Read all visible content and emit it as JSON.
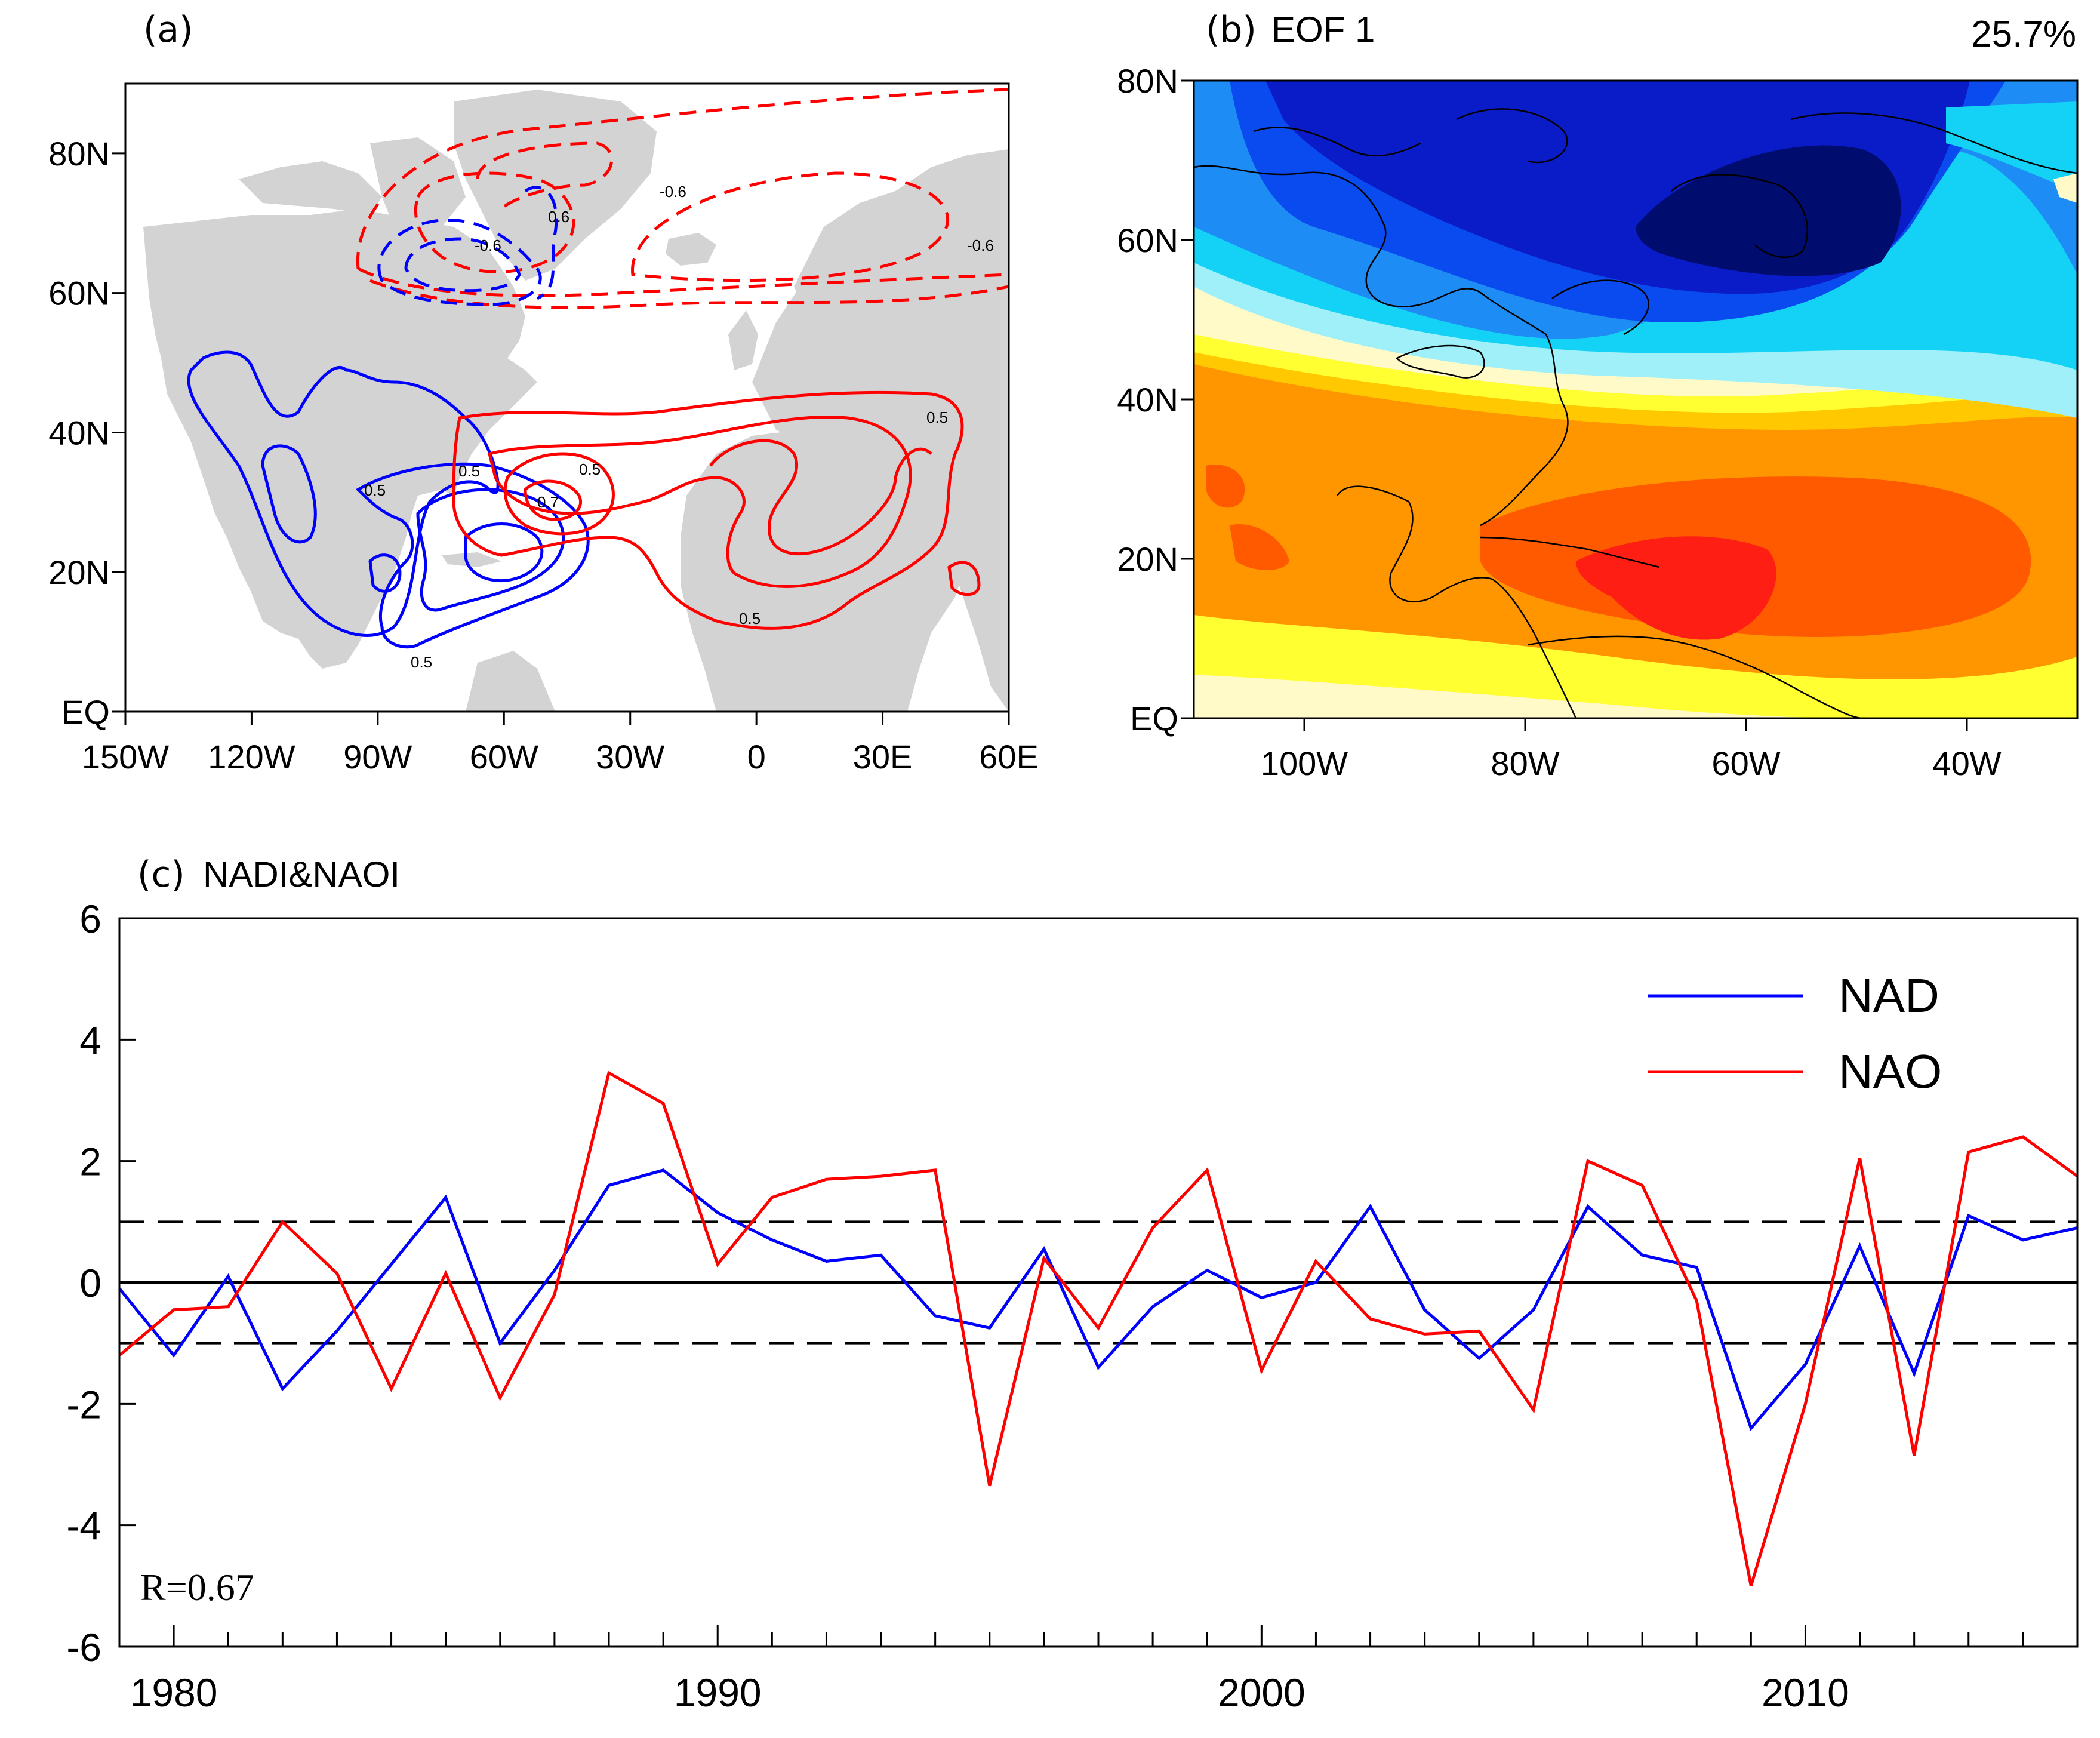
{
  "chart_data": [
    {
      "panel": "a",
      "type": "contour-map",
      "tag": "(a)",
      "x_ticks": [
        "150W",
        "120W",
        "90W",
        "60W",
        "30W",
        "0",
        "30E",
        "60E"
      ],
      "y_ticks": [
        "EQ",
        "20N",
        "40N",
        "60N",
        "80N"
      ],
      "xlim": [
        -150,
        60
      ],
      "ylim": [
        0,
        90
      ],
      "land_color": "#d3d3d3",
      "contour_labels": [
        {
          "text": "-0.6",
          "color": "#0000ff",
          "lon": -67,
          "lat": 67
        },
        {
          "text": "0.6",
          "color": "#ff0000",
          "lon": -53,
          "lat": 70
        },
        {
          "text": "-0.6",
          "color": "#ff0000",
          "lon": -20,
          "lat": 74
        },
        {
          "text": "-0.6",
          "color": "#ff0000",
          "lon": 50,
          "lat": 67
        },
        {
          "text": "0.5",
          "color": "#0000ff",
          "lon": -86,
          "lat": 32
        },
        {
          "text": "0.5",
          "color": "#ff0000",
          "lon": -74,
          "lat": 35
        },
        {
          "text": "0.5",
          "color": "#0000ff",
          "lon": -42,
          "lat": 35
        },
        {
          "text": "0.7",
          "color": "#0000ff",
          "lon": -52,
          "lat": 29
        },
        {
          "text": "0.5",
          "color": "#ff0000",
          "lon": 40,
          "lat": 42
        },
        {
          "text": "0.5",
          "color": "#ff0000",
          "lon": -4,
          "lat": 13
        },
        {
          "text": "0.5",
          "color": "#0000ff",
          "lon": -78,
          "lat": 7
        }
      ]
    },
    {
      "panel": "b",
      "type": "heatmap",
      "tag": "(b)",
      "title": "EOF 1",
      "variance": "25.7%",
      "x_ticks": [
        "100W",
        "80W",
        "60W",
        "40W"
      ],
      "x_tick_lons": [
        -100,
        -80,
        -60,
        -40
      ],
      "y_ticks": [
        "EQ",
        "20N",
        "40N",
        "60N",
        "80N"
      ],
      "xlim": [
        -110,
        -30
      ],
      "ylim": [
        0,
        80
      ],
      "colors": [
        "#000c6e",
        "#0a1cc8",
        "#0a4bf0",
        "#1e8cf5",
        "#14d2f5",
        "#a0f0fa",
        "#fffac8",
        "#ffff32",
        "#ffc800",
        "#ff9600",
        "#ff5a00",
        "#ff1e14"
      ]
    },
    {
      "panel": "c",
      "type": "line",
      "tag": "(c)",
      "title": "NADI&NAOI",
      "x": [
        1979,
        1980,
        1981,
        1982,
        1983,
        1984,
        1985,
        1986,
        1987,
        1988,
        1989,
        1990,
        1991,
        1992,
        1993,
        1994,
        1995,
        1996,
        1997,
        1998,
        1999,
        2000,
        2001,
        2002,
        2003,
        2004,
        2005,
        2006,
        2007,
        2008,
        2009,
        2010,
        2011,
        2012,
        2013,
        2014,
        2015
      ],
      "xlim": [
        1979,
        2015
      ],
      "ylim": [
        -6,
        6
      ],
      "x_ticks": [
        1980,
        1990,
        2000,
        2010
      ],
      "y_ticks": [
        -6,
        -4,
        -2,
        0,
        2,
        4,
        6
      ],
      "x_tick_labels": [
        "1980",
        "1990",
        "2000",
        "2010"
      ],
      "y_tick_labels": [
        "-6",
        "-4",
        "-2",
        "0",
        "2",
        "4",
        "6"
      ],
      "reference_lines": [
        {
          "y": 1,
          "style": "dashed"
        },
        {
          "y": 0,
          "style": "solid"
        },
        {
          "y": -1,
          "style": "dashed"
        }
      ],
      "annotation": "R=0.67",
      "legend_position": "top-right",
      "series": [
        {
          "name": "NAD",
          "color": "#0000ff",
          "values": [
            -0.1,
            -1.2,
            0.1,
            -1.75,
            -0.8,
            0.3,
            1.4,
            -1.0,
            0.2,
            1.6,
            1.85,
            1.15,
            0.7,
            0.35,
            0.45,
            -0.55,
            -0.75,
            0.55,
            -1.4,
            -0.4,
            0.2,
            -0.25,
            0.0,
            1.25,
            -0.45,
            -1.25,
            -0.45,
            1.25,
            0.45,
            0.25,
            -2.4,
            -1.35,
            0.6,
            -1.5,
            1.1,
            0.7,
            0.9
          ]
        },
        {
          "name": "NAO",
          "color": "#ff0000",
          "values": [
            -1.2,
            -0.45,
            -0.4,
            1.0,
            0.15,
            -1.75,
            0.15,
            -1.9,
            -0.2,
            3.45,
            2.95,
            0.3,
            1.4,
            1.7,
            1.75,
            1.85,
            -3.35,
            0.4,
            -0.75,
            0.9,
            1.85,
            -1.45,
            0.35,
            -0.6,
            -0.85,
            -0.8,
            -2.1,
            2.0,
            1.6,
            -0.3,
            -5.0,
            -2.0,
            2.05,
            -2.85,
            2.15,
            2.4,
            1.75
          ]
        }
      ]
    }
  ]
}
